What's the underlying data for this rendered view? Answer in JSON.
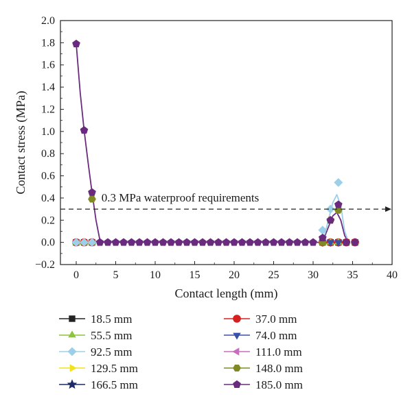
{
  "chart_data": {
    "type": "scatter",
    "xlabel": "Contact length (mm)",
    "ylabel": "Contact stress (MPa)",
    "xlim": [
      -2,
      40
    ],
    "ylim": [
      -0.2,
      2.0
    ],
    "xticks": [
      0,
      5,
      10,
      15,
      20,
      25,
      30,
      35,
      40
    ],
    "yticks": [
      -0.2,
      0.0,
      0.2,
      0.4,
      0.6,
      0.8,
      1.0,
      1.2,
      1.4,
      1.6,
      1.8,
      2.0
    ],
    "xtick_labels": [
      "0",
      "5",
      "10",
      "15",
      "20",
      "25",
      "30",
      "35",
      "40"
    ],
    "ytick_labels": [
      "−0.2",
      "0.0",
      "0.2",
      "0.4",
      "0.6",
      "0.8",
      "1.0",
      "1.2",
      "1.4",
      "1.6",
      "1.8",
      "2.0"
    ],
    "grid": false,
    "legend_position": "bottom",
    "annotation": {
      "text": "0.3 MPa waterproof requirements",
      "y": 0.3
    },
    "series": [
      {
        "name": "18.5 mm",
        "marker": "square",
        "color": "#222222",
        "x": [
          0,
          1,
          2,
          31.2,
          32.2,
          33.2,
          34.2,
          35.3
        ],
        "y": [
          0,
          0,
          0,
          0,
          0,
          0,
          0,
          0
        ]
      },
      {
        "name": "37.0 mm",
        "marker": "circle",
        "color": "#d62020",
        "x": [
          0,
          1,
          2,
          31.2,
          32.2,
          33.2,
          34.2,
          35.3
        ],
        "y": [
          0,
          0,
          0,
          0,
          0,
          0,
          0,
          0
        ]
      },
      {
        "name": "55.5 mm",
        "marker": "triangle-up",
        "color": "#8cc43c",
        "x": [
          0,
          1,
          2,
          31.2,
          32.2,
          33.2,
          34.2,
          35.3
        ],
        "y": [
          0,
          0,
          0,
          0,
          0,
          0,
          0,
          0
        ]
      },
      {
        "name": "74.0 mm",
        "marker": "triangle-down",
        "color": "#3a4fa8",
        "x": [
          31.2,
          32.2,
          33.2
        ],
        "y": [
          0,
          0,
          0
        ]
      },
      {
        "name": "92.5 mm",
        "marker": "diamond",
        "color": "#9ccfe8",
        "x": [
          0,
          1,
          2,
          31.2,
          32.2,
          33.2
        ],
        "y": [
          0,
          0,
          0,
          0.11,
          0.3,
          0.54
        ]
      },
      {
        "name": "111.0 mm",
        "marker": "triangle-left",
        "color": "#c86cbf",
        "x": [],
        "y": []
      },
      {
        "name": "129.5 mm",
        "marker": "triangle-right",
        "color": "#f2e21c",
        "x": [],
        "y": []
      },
      {
        "name": "148.0 mm",
        "marker": "hexagon",
        "color": "#808a24",
        "x": [
          2,
          31.2,
          32.2,
          33.2
        ],
        "y": [
          0.39,
          0.0,
          0.2,
          0.29
        ]
      },
      {
        "name": "166.5 mm",
        "marker": "star",
        "color": "#1c2a6a",
        "x": [],
        "y": []
      },
      {
        "name": "185.0 mm",
        "marker": "pentagon",
        "color": "#6a2a7e",
        "x": [
          0,
          1,
          2,
          3,
          4,
          5,
          6,
          7,
          8,
          9,
          10,
          11,
          12,
          13,
          14,
          15,
          16,
          17,
          18,
          19,
          20,
          21,
          22,
          23,
          24,
          25,
          26,
          27,
          28,
          29,
          30,
          31.2,
          32.2,
          33.2,
          34.2,
          35.3
        ],
        "y": [
          1.79,
          1.01,
          0.45,
          0,
          0,
          0,
          0,
          0,
          0,
          0,
          0,
          0,
          0,
          0,
          0,
          0,
          0,
          0,
          0,
          0,
          0,
          0,
          0,
          0,
          0,
          0,
          0,
          0,
          0,
          0,
          0,
          0.04,
          0.2,
          0.34,
          0,
          0
        ]
      }
    ],
    "fit_curves": [
      {
        "name": "185.0 mm",
        "color": "#6a2a7e",
        "x": [
          0,
          0.5,
          1,
          1.5,
          2,
          2.5,
          3,
          3.3,
          31,
          31.5,
          32,
          32.5,
          33,
          33.5,
          34,
          34.5
        ],
        "y": [
          1.79,
          1.35,
          1.01,
          0.72,
          0.45,
          0.2,
          0.02,
          0,
          0,
          0.06,
          0.15,
          0.24,
          0.27,
          0.2,
          0.06,
          0
        ]
      },
      {
        "name": "92.5 mm",
        "color": "#9ccfe8",
        "x": [
          31,
          31.5,
          32,
          32.5,
          33,
          33.5,
          34,
          34.5
        ],
        "y": [
          0,
          0.08,
          0.22,
          0.36,
          0.43,
          0.33,
          0.1,
          0
        ]
      }
    ]
  }
}
